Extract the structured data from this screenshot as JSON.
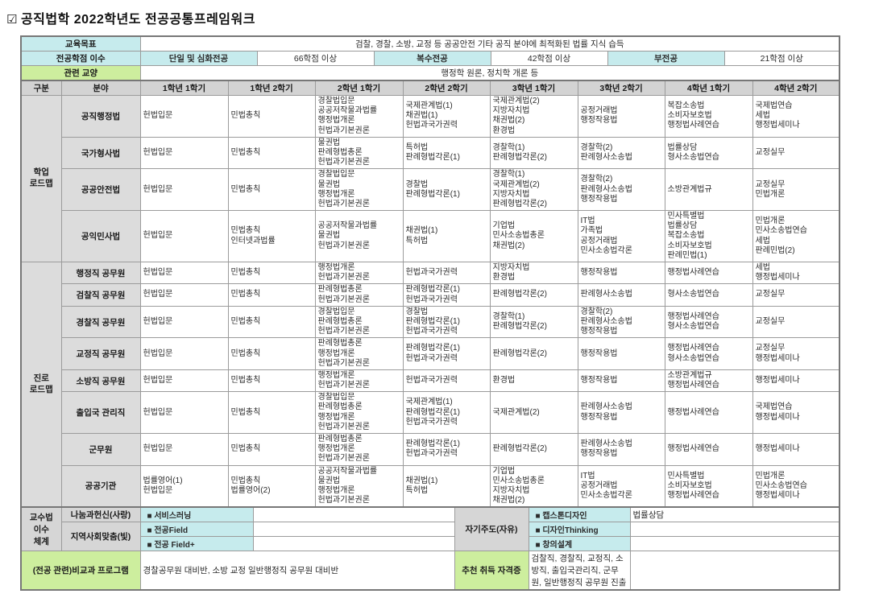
{
  "title": {
    "check_glyph": "☑",
    "text": "공직법학 2022학년도 전공공통프레임워크"
  },
  "colors": {
    "accent_cyan": "#c6ebed",
    "accent_green": "#cdee9e",
    "label_gray": "#d6d6d6",
    "border": "#9b9b9b"
  },
  "top": {
    "goal_label": "교육목표",
    "goal_value": "검찰, 경찰, 소방, 교정 등 공공안전 기타 공직 분야에 최적화된 법률 지식 습득",
    "credit_label": "전공학점 이수",
    "credit_cells": [
      {
        "label": "단일 및 심화전공"
      },
      {
        "label": "66학점 이상"
      },
      {
        "label": "복수전공"
      },
      {
        "label": "42학점 이상"
      },
      {
        "label": "부전공"
      },
      {
        "label": "21학점 이상"
      }
    ],
    "liberal_label": "관련 교양",
    "liberal_value": "행정학 원론, 정치학 개론 등"
  },
  "grid": {
    "col_headers": [
      "구분",
      "분야",
      "1학년 1학기",
      "1학년 2학기",
      "2학년 1학기",
      "2학년 2학기",
      "3학년 1학기",
      "3학년 2학기",
      "4학년 1학기",
      "4학년 2학기"
    ],
    "sections": [
      {
        "name": "학업\n로드맵",
        "rows": [
          {
            "field": "공직행정법",
            "cells": [
              [
                "헌법입문"
              ],
              [
                "민법총칙"
              ],
              [
                "경찰법입문",
                "공공저작물과법률",
                "행정법개론",
                "헌법과기본권론"
              ],
              [
                "국제관계법(1)",
                "채권법(1)",
                "헌법과국가권력"
              ],
              [
                "국제관계법(2)",
                "지방자치법",
                "채권법(2)",
                "환경법"
              ],
              [
                "공정거래법",
                "행정작용법"
              ],
              [
                "복잡소송법",
                "소비자보호법",
                "행정법사례연습"
              ],
              [
                "국제법연습",
                "세법",
                "행정법세미나"
              ]
            ]
          },
          {
            "field": "국가형사법",
            "cells": [
              [
                "헌법입문"
              ],
              [
                "민법총칙"
              ],
              [
                "물권법",
                "판례형법총론",
                "헌법과기본권론"
              ],
              [
                "특허법",
                "판례형법각론(1)"
              ],
              [
                "경찰학(1)",
                "판례형법각론(2)"
              ],
              [
                "경찰학(2)",
                "판례형사소송법"
              ],
              [
                "법률상담",
                "형사소송법연습"
              ],
              [
                "교정실무"
              ]
            ]
          },
          {
            "field": "공공안전법",
            "cells": [
              [
                "헌법입문"
              ],
              [
                "민법총칙"
              ],
              [
                "경찰법입문",
                "물권법",
                "행정법개론",
                "헌법과기본권론"
              ],
              [
                "경찰법",
                "판례형법각론(1)"
              ],
              [
                "경찰학(1)",
                "국제관계법(2)",
                "지방자치법",
                "판례형법각론(2)"
              ],
              [
                "경찰학(2)",
                "판례형사소송법",
                "행정작용법"
              ],
              [
                "소방관계법규"
              ],
              [
                "교정실무",
                "민법개론"
              ]
            ]
          },
          {
            "field": "공익민사법",
            "cells": [
              [
                "헌법입문"
              ],
              [
                "민법총칙",
                "인터넷과법률"
              ],
              [
                "공공저작물과법률",
                "물권법",
                "헌법과기본권론"
              ],
              [
                "채권법(1)",
                "특허법"
              ],
              [
                "기업법",
                "민사소송법총론",
                "채권법(2)"
              ],
              [
                "IT법",
                "가족법",
                "공정거래법",
                "민사소송법각론"
              ],
              [
                "민사특별법",
                "법률상담",
                "복잡소송법",
                "소비자보호법",
                "판례민법(1)"
              ],
              [
                "민법개론",
                "민사소송법연습",
                "세법",
                "판례민법(2)"
              ]
            ]
          }
        ]
      },
      {
        "name": "진로\n로드맵",
        "rows": [
          {
            "field": "행정직 공무원",
            "cells": [
              [
                "헌법입문"
              ],
              [
                "민법총칙"
              ],
              [
                "행정법개론",
                "헌법과기본권론"
              ],
              [
                "헌법과국가권력"
              ],
              [
                "지방자치법",
                "환경법"
              ],
              [
                "행정작용법"
              ],
              [
                "행정법사례연습"
              ],
              [
                "세법",
                "행정법세미나"
              ]
            ]
          },
          {
            "field": "검찰직 공무원",
            "cells": [
              [
                "헌법입문"
              ],
              [
                "민법총칙"
              ],
              [
                "판례형법총론",
                "헌법과기본권론"
              ],
              [
                "판례형법각론(1)",
                "헌법과국가권력"
              ],
              [
                "판례형법각론(2)"
              ],
              [
                "판례형사소송법"
              ],
              [
                "형사소송법연습"
              ],
              [
                "교정실무"
              ]
            ]
          },
          {
            "field": "경찰직 공무원",
            "cells": [
              [
                "헌법입문"
              ],
              [
                "민법총칙"
              ],
              [
                "경찰법입문",
                "판례형법총론",
                "헌법과기본권론"
              ],
              [
                "경찰법",
                "판례형법각론(1)",
                "헌법과국가권력"
              ],
              [
                "경찰학(1)",
                "판례형법각론(2)"
              ],
              [
                "경찰학(2)",
                "판례형사소송법",
                "행정작용법"
              ],
              [
                "행정법사례연습",
                "형사소송법연습"
              ],
              [
                "교정실무"
              ]
            ]
          },
          {
            "field": "교정직 공무원",
            "cells": [
              [
                "헌법입문"
              ],
              [
                "민법총칙"
              ],
              [
                "판례형법총론",
                "행정법개론",
                "헌법과기본권론"
              ],
              [
                "판례형법각론(1)",
                "헌법과국가권력"
              ],
              [
                "판례형법각론(2)"
              ],
              [
                "행정작용법"
              ],
              [
                "행정법사례연습",
                "형사소송법연습"
              ],
              [
                "교정실무",
                "행정법세미나"
              ]
            ]
          },
          {
            "field": "소방직 공무원",
            "cells": [
              [
                "헌법입문"
              ],
              [
                "민법총칙"
              ],
              [
                "행정법개론",
                "헌법과기본권론"
              ],
              [
                "헌법과국가권력"
              ],
              [
                "환경법"
              ],
              [
                "행정작용법"
              ],
              [
                "소방관계법규",
                "행정법사례연습"
              ],
              [
                "행정법세미나"
              ]
            ]
          },
          {
            "field": "출입국 관리직",
            "cells": [
              [
                "헌법입문"
              ],
              [
                "민법총칙"
              ],
              [
                "경찰법입문",
                "판례형법총론",
                "행정법개론",
                "헌법과기본권론"
              ],
              [
                "국제관계법(1)",
                "판례형법각론(1)",
                "헌법과국가권력"
              ],
              [
                "국제관계법(2)"
              ],
              [
                "판례형사소송법",
                "행정작용법"
              ],
              [
                "행정법사례연습"
              ],
              [
                "국제법연습",
                "행정법세미나"
              ]
            ]
          },
          {
            "field": "군무원",
            "cells": [
              [
                "헌법입문"
              ],
              [
                "민법총칙"
              ],
              [
                "판례형법총론",
                "행정법개론",
                "헌법과기본권론"
              ],
              [
                "판례형법각론(1)",
                "헌법과국가권력"
              ],
              [
                "판례형법각론(2)"
              ],
              [
                "판례형사소송법",
                "행정작용법"
              ],
              [
                "행정법사례연습"
              ],
              [
                "행정법세미나"
              ]
            ]
          },
          {
            "field": "공공기관",
            "cells": [
              [
                "법률영어(1)",
                "헌법입문"
              ],
              [
                "민법총칙",
                "법률영어(2)"
              ],
              [
                "공공저작물과법률",
                "물권법",
                "행정법개론",
                "헌법과기본권론"
              ],
              [
                "채권법(1)",
                "특허법"
              ],
              [
                "기업법",
                "민사소송법총론",
                "지방자치법",
                "채권법(2)"
              ],
              [
                "IT법",
                "공정거래법",
                "민사소송법각론"
              ],
              [
                "민사특별법",
                "소비자보호법",
                "행정법사례연습"
              ],
              [
                "민법개론",
                "민사소송법연습",
                "행정법세미나"
              ]
            ]
          }
        ]
      }
    ]
  },
  "bottom": {
    "system_label": "교수법\n이수\n체계",
    "self_label": "자기주도(자유)",
    "rows": [
      {
        "category": "나눔과헌신(사랑)",
        "item": "■ 서비스러닝"
      },
      {
        "category": "지역사회맞춤(빛)",
        "item": "■ 전공Field"
      },
      {
        "item": "■ 전공 Field+"
      }
    ],
    "right_items": [
      "■ 캡스톤디자인",
      "■ 디자인Thinking",
      "■ 창의설계"
    ],
    "right_value": "법률상담",
    "extra_label": "(전공 관련)비교과 프로그램",
    "extra_value": "경찰공무원 대비반, 소방 교정 일반행정직 공무원 대비반",
    "cert_label": "추천 취득 자격증",
    "cert_value": "검찰직, 경찰직, 교정직, 소방직, 출입국관리직, 군무원, 일반행정직 공무원 진출"
  }
}
